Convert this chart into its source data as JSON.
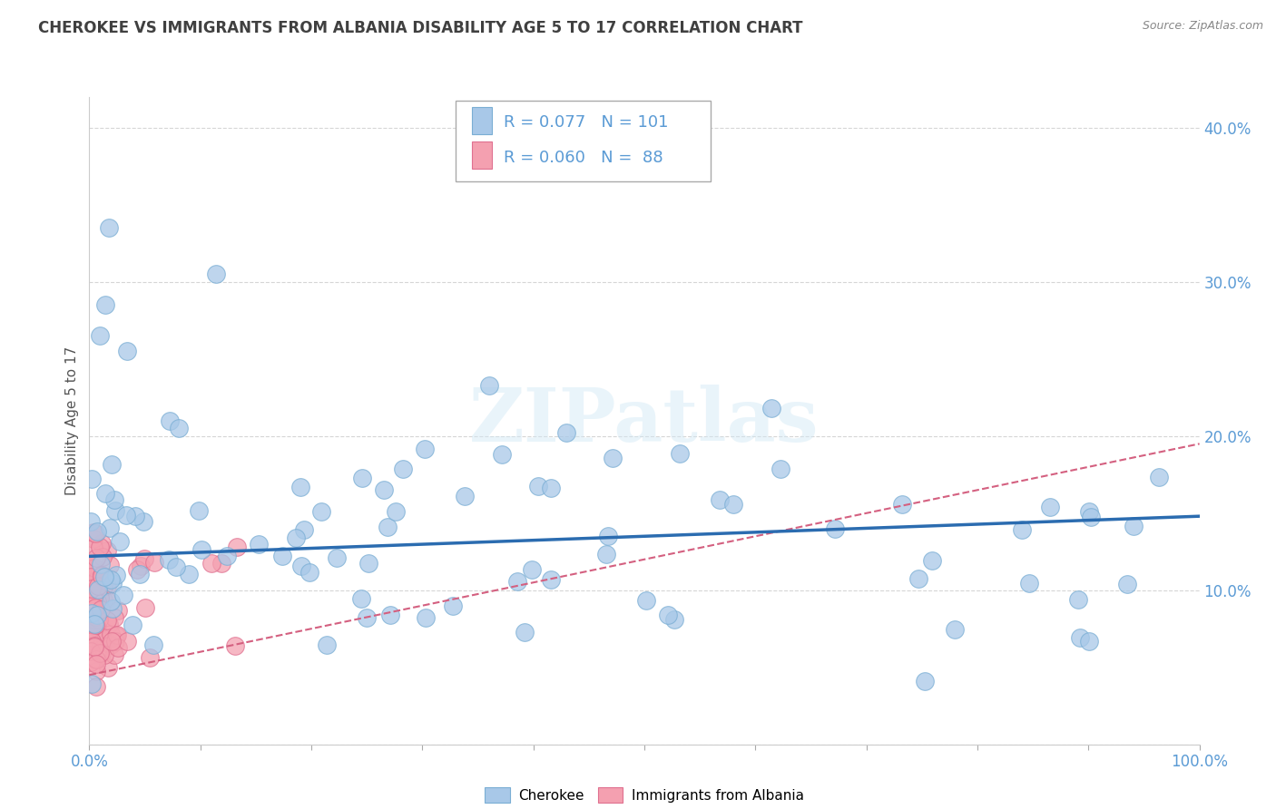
{
  "title": "CHEROKEE VS IMMIGRANTS FROM ALBANIA DISABILITY AGE 5 TO 17 CORRELATION CHART",
  "source": "Source: ZipAtlas.com",
  "ylabel": "Disability Age 5 to 17",
  "xlim": [
    0.0,
    1.0
  ],
  "ylim": [
    0.0,
    0.42
  ],
  "cherokee_R": 0.077,
  "cherokee_N": 101,
  "albania_R": 0.06,
  "albania_N": 88,
  "cherokee_color": "#a8c8e8",
  "cherokee_edge": "#7aaed4",
  "albania_color": "#f4a0b0",
  "albania_edge": "#e07090",
  "cherokee_line_color": "#2b6cb0",
  "albania_line_color": "#d46080",
  "legend_label_1": "Cherokee",
  "legend_label_2": "Immigrants from Albania",
  "background_color": "#ffffff",
  "watermark": "ZIPatlas",
  "tick_color": "#5b9bd5",
  "grid_color": "#cccccc",
  "title_color": "#404040",
  "source_color": "#888888",
  "cherokee_line_start_y": 0.122,
  "cherokee_line_end_y": 0.148,
  "albania_line_start_y": 0.045,
  "albania_line_end_y": 0.195
}
